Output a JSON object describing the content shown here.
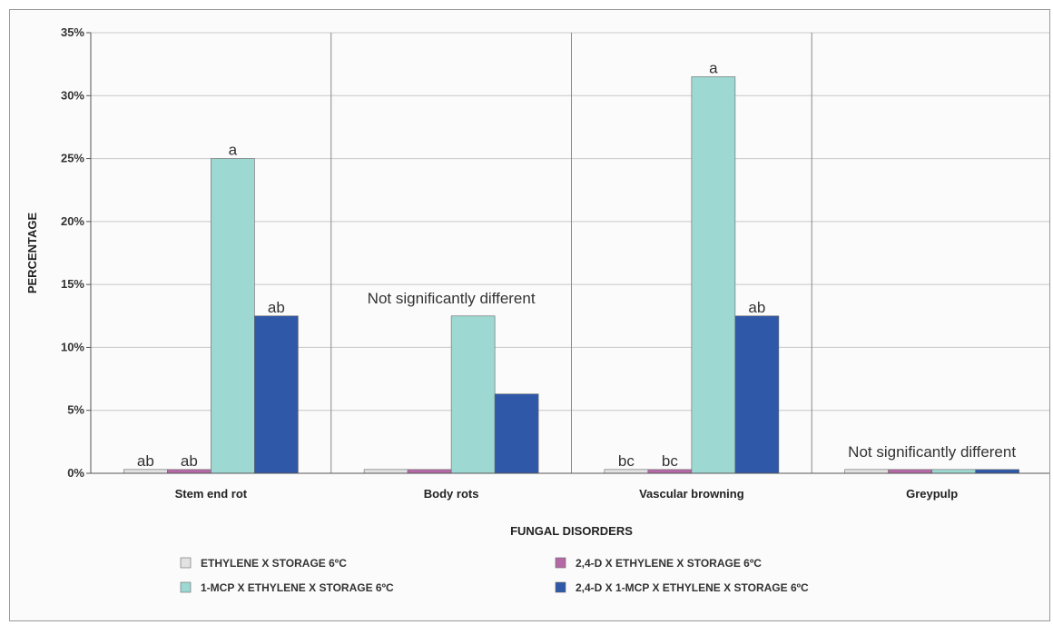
{
  "chart_data": {
    "type": "bar",
    "title": "",
    "xlabel": "FUNGAL DISORDERS",
    "ylabel": "PERCENTAGE",
    "ylim": [
      0,
      35
    ],
    "yticks": [
      "0%",
      "5%",
      "10%",
      "15%",
      "20%",
      "25%",
      "30%",
      "35%"
    ],
    "categories": [
      "Stem end rot",
      "Body rots",
      "Vascular browning",
      "Greypulp"
    ],
    "series": [
      {
        "name": "ETHYLENE X STORAGE 6ºC",
        "color": "#e2e2e2",
        "values": [
          0.3,
          0.3,
          0.3,
          0.3
        ]
      },
      {
        "name": "2,4-D X ETHYLENE X STORAGE 6ºC",
        "color": "#b56aa6",
        "values": [
          0.3,
          0.3,
          0.3,
          0.3
        ]
      },
      {
        "name": "1-MCP X ETHYLENE X STORAGE 6ºC",
        "color": "#9dd8d2",
        "values": [
          25,
          12.5,
          31.5,
          0.3
        ]
      },
      {
        "name": "2,4-D X 1-MCP X ETHYLENE X STORAGE 6ºC",
        "color": "#2f59a8",
        "values": [
          12.5,
          6.3,
          12.5,
          0.3
        ]
      }
    ],
    "bar_labels": [
      [
        "ab",
        "ab",
        "a",
        "ab"
      ],
      [
        "",
        "",
        "",
        ""
      ],
      [
        "bc",
        "bc",
        "a",
        "ab"
      ],
      [
        "",
        "",
        "",
        ""
      ]
    ],
    "annotations": [
      {
        "category": "Body rots",
        "text": "Not significantly different"
      },
      {
        "category": "Greypulp",
        "text": "Not significantly different"
      }
    ],
    "grid": true,
    "legend": "bottom"
  }
}
